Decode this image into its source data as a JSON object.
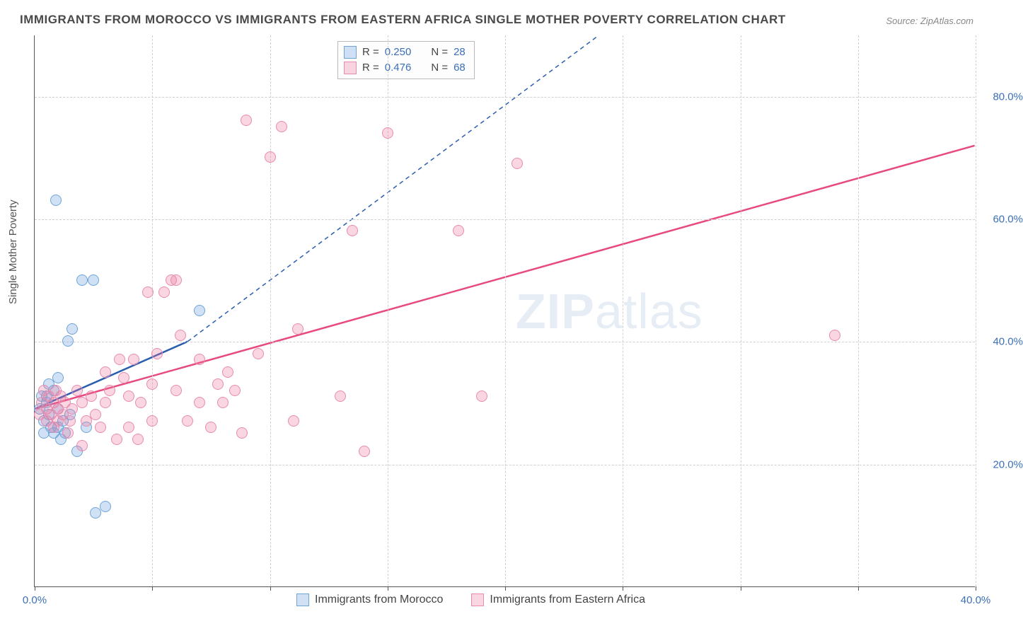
{
  "title": "IMMIGRANTS FROM MOROCCO VS IMMIGRANTS FROM EASTERN AFRICA SINGLE MOTHER POVERTY CORRELATION CHART",
  "source": "Source: ZipAtlas.com",
  "ylabel": "Single Mother Poverty",
  "watermark_zip": "ZIP",
  "watermark_atlas": "atlas",
  "chart": {
    "type": "scatter",
    "xlim": [
      0,
      40
    ],
    "ylim": [
      0,
      90
    ],
    "x_ticks": [
      0,
      5,
      10,
      15,
      20,
      25,
      30,
      35,
      40
    ],
    "x_tick_labels": {
      "0": "0.0%",
      "40": "40.0%"
    },
    "y_ticks": [
      20,
      40,
      60,
      80
    ],
    "y_tick_labels": {
      "20": "20.0%",
      "40": "40.0%",
      "60": "60.0%",
      "80": "80.0%"
    },
    "background_color": "#ffffff",
    "grid_color": "#d0d0d0",
    "series": [
      {
        "key": "morocco",
        "label": "Immigrants from Morocco",
        "color_fill": "rgba(120,170,225,0.35)",
        "color_stroke": "#6fa4d8",
        "r_label": "R = ",
        "r_value": "0.250",
        "n_label": "N = ",
        "n_value": "28",
        "trend": {
          "x1": 0,
          "y1": 29,
          "x2": 6.5,
          "y2": 40,
          "dash_x2": 24,
          "dash_y2": 90,
          "color": "#2a5db0"
        },
        "points": [
          [
            0.2,
            29
          ],
          [
            0.3,
            31
          ],
          [
            0.4,
            27
          ],
          [
            0.5,
            30
          ],
          [
            0.6,
            28
          ],
          [
            0.6,
            33
          ],
          [
            0.8,
            25
          ],
          [
            0.8,
            32
          ],
          [
            1.0,
            26
          ],
          [
            1.0,
            29
          ],
          [
            1.1,
            24
          ],
          [
            1.2,
            27
          ],
          [
            1.3,
            25
          ],
          [
            1.4,
            40
          ],
          [
            1.5,
            28
          ],
          [
            1.6,
            42
          ],
          [
            1.8,
            22
          ],
          [
            2.0,
            50
          ],
          [
            2.5,
            50
          ],
          [
            0.9,
            63
          ],
          [
            2.2,
            26
          ],
          [
            2.6,
            12
          ],
          [
            3.0,
            13
          ],
          [
            1.0,
            34
          ],
          [
            0.7,
            26
          ],
          [
            0.4,
            25
          ],
          [
            0.5,
            31
          ],
          [
            7.0,
            45
          ]
        ]
      },
      {
        "key": "eastern_africa",
        "label": "Immigrants from Eastern Africa",
        "color_fill": "rgba(235,120,155,0.30)",
        "color_stroke": "#e78bb0",
        "r_label": "R = ",
        "r_value": "0.476",
        "n_label": "N = ",
        "n_value": "68",
        "trend": {
          "x1": 0,
          "y1": 29,
          "x2": 40,
          "y2": 72,
          "color": "#e84a7f"
        },
        "points": [
          [
            0.2,
            28
          ],
          [
            0.3,
            30
          ],
          [
            0.4,
            32
          ],
          [
            0.5,
            27
          ],
          [
            0.5,
            29
          ],
          [
            0.6,
            31
          ],
          [
            0.7,
            28
          ],
          [
            0.8,
            26
          ],
          [
            0.8,
            30
          ],
          [
            0.9,
            32
          ],
          [
            1.0,
            27
          ],
          [
            1.0,
            29
          ],
          [
            1.1,
            31
          ],
          [
            1.2,
            28
          ],
          [
            1.3,
            30
          ],
          [
            1.4,
            25
          ],
          [
            1.5,
            27
          ],
          [
            1.6,
            29
          ],
          [
            1.8,
            32
          ],
          [
            2.0,
            23
          ],
          [
            2.0,
            30
          ],
          [
            2.2,
            27
          ],
          [
            2.4,
            31
          ],
          [
            2.6,
            28
          ],
          [
            2.8,
            26
          ],
          [
            3.0,
            30
          ],
          [
            3.0,
            35
          ],
          [
            3.2,
            32
          ],
          [
            3.5,
            24
          ],
          [
            3.6,
            37
          ],
          [
            4.0,
            26
          ],
          [
            4.0,
            31
          ],
          [
            4.2,
            37
          ],
          [
            4.5,
            30
          ],
          [
            4.8,
            48
          ],
          [
            5.0,
            27
          ],
          [
            5.0,
            33
          ],
          [
            5.2,
            38
          ],
          [
            5.5,
            48
          ],
          [
            5.8,
            50
          ],
          [
            6.0,
            32
          ],
          [
            6.0,
            50
          ],
          [
            6.2,
            41
          ],
          [
            6.5,
            27
          ],
          [
            7.0,
            30
          ],
          [
            7.0,
            37
          ],
          [
            7.5,
            26
          ],
          [
            7.8,
            33
          ],
          [
            8.0,
            30
          ],
          [
            8.2,
            35
          ],
          [
            8.5,
            32
          ],
          [
            8.8,
            25
          ],
          [
            9.0,
            76
          ],
          [
            9.5,
            38
          ],
          [
            10.0,
            70
          ],
          [
            10.5,
            75
          ],
          [
            11.0,
            27
          ],
          [
            11.2,
            42
          ],
          [
            13.0,
            31
          ],
          [
            13.5,
            58
          ],
          [
            14.0,
            22
          ],
          [
            15.0,
            74
          ],
          [
            18.0,
            58
          ],
          [
            19.0,
            31
          ],
          [
            20.5,
            69
          ],
          [
            34.0,
            41
          ],
          [
            4.4,
            24
          ],
          [
            3.8,
            34
          ]
        ]
      }
    ]
  },
  "colors": {
    "title": "#4a4a4a",
    "tick": "#3b6fb6",
    "stat_value": "#3b6fb6"
  }
}
